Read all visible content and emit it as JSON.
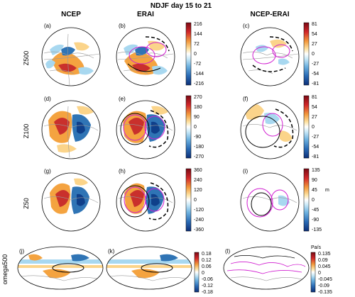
{
  "figure": {
    "title": "NDJF  day 15 to 21",
    "columns": [
      "NCEP",
      "ERAI",
      "NCEP-ERAI"
    ],
    "rows": [
      "Z500",
      "Z100",
      "Z50",
      "omega500"
    ],
    "panels": {
      "a": "(a)",
      "b": "(b)",
      "c": "(c)",
      "d": "(d)",
      "e": "(e)",
      "f": "(f)",
      "g": "(g)",
      "h": "(h)",
      "i": "(i)",
      "j": "(j)",
      "k": "(k)",
      "l": "(l)"
    },
    "colorbars": {
      "z500": [
        "216",
        "144",
        "72",
        "0",
        "-72",
        "-144",
        "-216"
      ],
      "z500_diff": [
        "81",
        "54",
        "27",
        "0",
        "-27",
        "-54",
        "-81"
      ],
      "z100": [
        "270",
        "180",
        "90",
        "0",
        "-90",
        "-180",
        "-270"
      ],
      "z100_diff": [
        "81",
        "54",
        "27",
        "0",
        "-27",
        "-54",
        "-81"
      ],
      "z50": [
        "360",
        "240",
        "120",
        "0",
        "-120",
        "-240",
        "-360"
      ],
      "z50_diff": [
        "135",
        "90",
        "45",
        "0",
        "-45",
        "-90",
        "-135"
      ],
      "z50_diff_unit": "m",
      "omega": [
        "0.18",
        "0.12",
        "0.06",
        "0",
        "-0.06",
        "-0.12",
        "-0.18"
      ],
      "omega_diff": [
        "0.135",
        "0.09",
        "0.045",
        "0",
        "-0.045",
        "-0.09",
        "-0.135"
      ],
      "omega_diff_unit": "Pa/s"
    }
  },
  "colors": {
    "red": "#b40f1e",
    "orange": "#f4a340",
    "light_orange": "#fbd48a",
    "light_blue": "#a8d8f0",
    "blue": "#2f74b5",
    "dark_blue": "#0f3f8a",
    "magenta": "#d01cd0",
    "gray": "#888888"
  }
}
